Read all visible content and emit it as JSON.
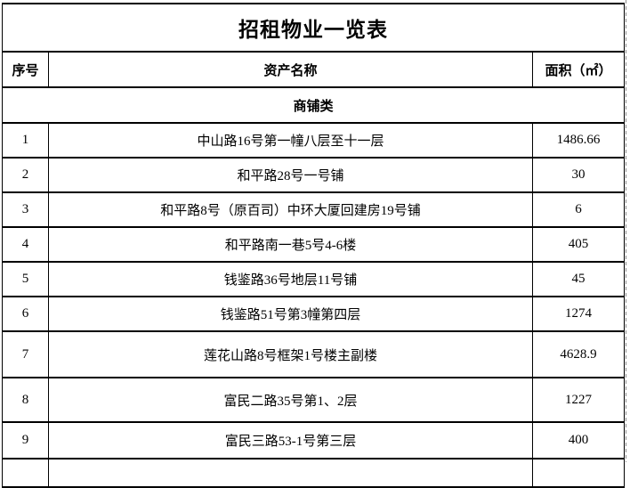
{
  "page": {
    "background_color": "#ffffff",
    "border_color": "#000000",
    "page_break_line_color": "#8c8c8c"
  },
  "table": {
    "title": "招租物业一览表",
    "columns": {
      "no": "序号",
      "name": "资产名称",
      "area": "面积（㎡）"
    },
    "section": "商铺类",
    "rows": [
      {
        "no": "1",
        "name": "中山路16号第一幢八层至十一层",
        "area": "1486.66"
      },
      {
        "no": "2",
        "name": "和平路28号一号铺",
        "area": "30"
      },
      {
        "no": "3",
        "name": "和平路8号（原百司）中环大厦回建房19号铺",
        "area": "6"
      },
      {
        "no": "4",
        "name": "和平路南一巷5号4-6楼",
        "area": "405"
      },
      {
        "no": "5",
        "name": "钱鉴路36号地层11号铺",
        "area": "45"
      },
      {
        "no": "6",
        "name": "钱鉴路51号第3幢第四层",
        "area": "1274"
      },
      {
        "no": "7",
        "name": "莲花山路8号框架1号楼主副楼",
        "area": "4628.9"
      },
      {
        "no": "8",
        "name": "富民二路35号第1、2层",
        "area": "1227"
      },
      {
        "no": "9",
        "name": "富民三路53-1号第三层",
        "area": "400"
      }
    ]
  }
}
